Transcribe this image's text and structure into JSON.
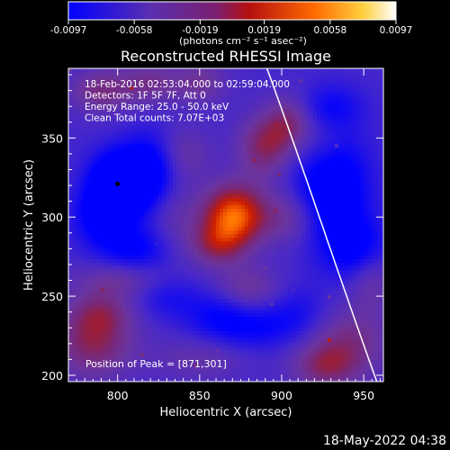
{
  "chart_data": {
    "type": "heatmap",
    "title": "Reconstructed RHESSI Image",
    "xlabel": "Heliocentric X (arcsec)",
    "ylabel": "Heliocentric Y (arcsec)",
    "xlim": [
      770,
      962
    ],
    "ylim": [
      196,
      394
    ],
    "x_ticks": [
      800,
      850,
      900,
      950
    ],
    "y_ticks": [
      200,
      250,
      300,
      350
    ],
    "colorbar": {
      "ticks": [
        "-0.0097",
        "-0.0058",
        "-0.0019",
        "0.0019",
        "0.0058",
        "0.0097"
      ],
      "range": [
        -0.0097,
        0.0097
      ],
      "unit_label": "(photons cm⁻² s⁻¹ asec⁻²)"
    },
    "annotations": [
      "18-Feb-2016 02:53:04.000 to 02:59:04.000",
      "Detectors: 1F 5F 7F, Att 0",
      "Energy Range: 25.0 - 50.0 keV",
      "Clean     Total counts: 7.07E+03"
    ],
    "peak_label": "Position of Peak = [871,301]",
    "peak": [
      871,
      301
    ],
    "limb_color": "#ffffff",
    "colors": [
      "#0000ff",
      "#6a3fa0",
      "#8a2a50",
      "#cc2200",
      "#ff7f00",
      "#ffff80",
      "#ffffff"
    ]
  },
  "footer": {
    "timestamp": "18-May-2022 04:38"
  }
}
